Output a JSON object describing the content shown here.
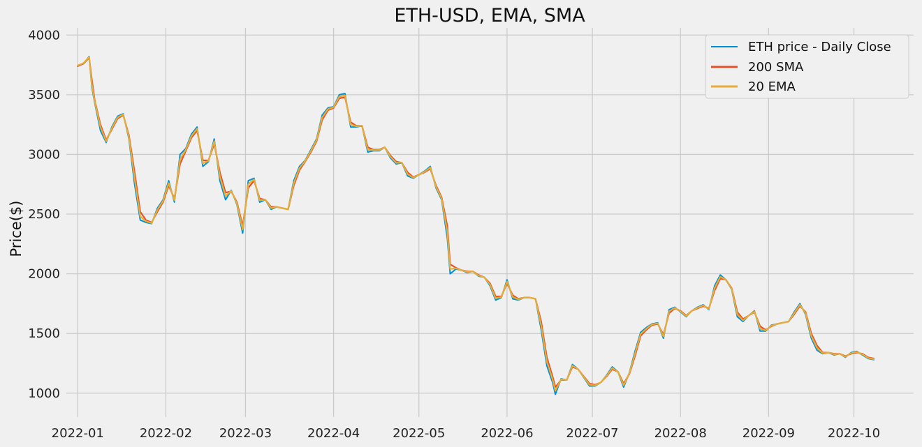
{
  "chart_data": {
    "type": "line",
    "title": "ETH-USD, EMA, SMA",
    "xlabel": "",
    "ylabel": "Price($)",
    "x_range": [
      "2021-12-28",
      "2022-10-22"
    ],
    "ylim": [
      800,
      4060
    ],
    "grid": true,
    "legend_position": "top-right",
    "x_ticks": [
      "2022-01",
      "2022-02",
      "2022-03",
      "2022-04",
      "2022-05",
      "2022-06",
      "2022-07",
      "2022-08",
      "2022-09",
      "2022-10"
    ],
    "x_tick_dates": [
      "2022-01-01",
      "2022-02-01",
      "2022-03-01",
      "2022-04-01",
      "2022-05-01",
      "2022-06-01",
      "2022-07-01",
      "2022-08-01",
      "2022-09-01",
      "2022-10-01"
    ],
    "y_ticks": [
      1000,
      1500,
      2000,
      2500,
      3000,
      3500,
      4000
    ],
    "series_dates": [
      "2022-01-01",
      "2022-01-03",
      "2022-01-05",
      "2022-01-06",
      "2022-01-07",
      "2022-01-09",
      "2022-01-11",
      "2022-01-13",
      "2022-01-15",
      "2022-01-17",
      "2022-01-19",
      "2022-01-21",
      "2022-01-23",
      "2022-01-25",
      "2022-01-27",
      "2022-01-29",
      "2022-01-31",
      "2022-02-02",
      "2022-02-04",
      "2022-02-06",
      "2022-02-08",
      "2022-02-10",
      "2022-02-12",
      "2022-02-14",
      "2022-02-16",
      "2022-02-18",
      "2022-02-20",
      "2022-02-22",
      "2022-02-24",
      "2022-02-26",
      "2022-02-28",
      "2022-03-02",
      "2022-03-04",
      "2022-03-06",
      "2022-03-08",
      "2022-03-10",
      "2022-03-12",
      "2022-03-14",
      "2022-03-16",
      "2022-03-18",
      "2022-03-20",
      "2022-03-22",
      "2022-03-24",
      "2022-03-26",
      "2022-03-28",
      "2022-03-30",
      "2022-04-01",
      "2022-04-03",
      "2022-04-05",
      "2022-04-07",
      "2022-04-09",
      "2022-04-11",
      "2022-04-13",
      "2022-04-15",
      "2022-04-17",
      "2022-04-19",
      "2022-04-21",
      "2022-04-23",
      "2022-04-25",
      "2022-04-27",
      "2022-04-29",
      "2022-05-01",
      "2022-05-03",
      "2022-05-05",
      "2022-05-07",
      "2022-05-09",
      "2022-05-11",
      "2022-05-12",
      "2022-05-14",
      "2022-05-16",
      "2022-05-18",
      "2022-05-20",
      "2022-05-22",
      "2022-05-24",
      "2022-05-26",
      "2022-05-28",
      "2022-05-30",
      "2022-06-01",
      "2022-06-03",
      "2022-06-05",
      "2022-06-07",
      "2022-06-09",
      "2022-06-11",
      "2022-06-13",
      "2022-06-15",
      "2022-06-17",
      "2022-06-18",
      "2022-06-20",
      "2022-06-22",
      "2022-06-24",
      "2022-06-26",
      "2022-06-28",
      "2022-06-30",
      "2022-07-02",
      "2022-07-04",
      "2022-07-06",
      "2022-07-08",
      "2022-07-10",
      "2022-07-12",
      "2022-07-14",
      "2022-07-16",
      "2022-07-18",
      "2022-07-20",
      "2022-07-22",
      "2022-07-24",
      "2022-07-26",
      "2022-07-28",
      "2022-07-30",
      "2022-08-01",
      "2022-08-03",
      "2022-08-05",
      "2022-08-07",
      "2022-08-09",
      "2022-08-11",
      "2022-08-13",
      "2022-08-15",
      "2022-08-17",
      "2022-08-19",
      "2022-08-21",
      "2022-08-23",
      "2022-08-25",
      "2022-08-27",
      "2022-08-29",
      "2022-08-31",
      "2022-09-02",
      "2022-09-04",
      "2022-09-06",
      "2022-09-08",
      "2022-09-10",
      "2022-09-12",
      "2022-09-14",
      "2022-09-16",
      "2022-09-18",
      "2022-09-20",
      "2022-09-22",
      "2022-09-24",
      "2022-09-26",
      "2022-09-28",
      "2022-09-30",
      "2022-10-02",
      "2022-10-04",
      "2022-10-06",
      "2022-10-08",
      "2022-10-10",
      "2022-10-11"
    ],
    "series": [
      {
        "name": "ETH price - Daily Close",
        "color": "#008fd5",
        "values": [
          3740,
          3760,
          3820,
          3560,
          3430,
          3200,
          3100,
          3230,
          3320,
          3340,
          3130,
          2750,
          2450,
          2430,
          2420,
          2550,
          2620,
          2780,
          2600,
          3000,
          3050,
          3170,
          3230,
          2900,
          2940,
          3130,
          2780,
          2620,
          2700,
          2580,
          2340,
          2780,
          2800,
          2600,
          2620,
          2540,
          2560,
          2550,
          2540,
          2780,
          2900,
          2950,
          3040,
          3130,
          3330,
          3390,
          3400,
          3500,
          3510,
          3230,
          3230,
          3240,
          3020,
          3030,
          3030,
          3060,
          2970,
          2920,
          2930,
          2820,
          2800,
          2830,
          2860,
          2900,
          2720,
          2620,
          2300,
          2000,
          2040,
          2030,
          2010,
          2020,
          1980,
          1970,
          1900,
          1780,
          1800,
          1950,
          1790,
          1780,
          1800,
          1800,
          1790,
          1530,
          1230,
          1090,
          990,
          1120,
          1110,
          1240,
          1200,
          1130,
          1060,
          1060,
          1090,
          1150,
          1220,
          1180,
          1050,
          1170,
          1350,
          1510,
          1550,
          1580,
          1590,
          1460,
          1700,
          1720,
          1680,
          1640,
          1690,
          1720,
          1740,
          1700,
          1900,
          1990,
          1950,
          1870,
          1640,
          1600,
          1650,
          1690,
          1520,
          1520,
          1570,
          1580,
          1590,
          1600,
          1680,
          1750,
          1660,
          1460,
          1360,
          1330,
          1340,
          1320,
          1330,
          1300,
          1340,
          1350,
          1320,
          1290,
          1280
        ]
      },
      {
        "name": "200 SMA",
        "color": "#e5502a",
        "values": [
          3740,
          3760,
          3810,
          3620,
          3450,
          3250,
          3120,
          3210,
          3300,
          3330,
          3160,
          2850,
          2520,
          2450,
          2430,
          2520,
          2600,
          2740,
          2630,
          2920,
          3030,
          3140,
          3200,
          2950,
          2950,
          3090,
          2850,
          2680,
          2690,
          2600,
          2400,
          2720,
          2780,
          2630,
          2620,
          2560,
          2560,
          2550,
          2540,
          2740,
          2870,
          2940,
          3020,
          3110,
          3290,
          3370,
          3390,
          3470,
          3480,
          3270,
          3240,
          3240,
          3060,
          3040,
          3040,
          3060,
          2990,
          2940,
          2930,
          2850,
          2810,
          2830,
          2850,
          2880,
          2740,
          2640,
          2400,
          2080,
          2050,
          2030,
          2020,
          2020,
          1990,
          1970,
          1920,
          1810,
          1810,
          1920,
          1820,
          1790,
          1800,
          1800,
          1790,
          1600,
          1300,
          1140,
          1050,
          1110,
          1110,
          1220,
          1200,
          1140,
          1080,
          1070,
          1090,
          1140,
          1200,
          1180,
          1080,
          1160,
          1310,
          1480,
          1530,
          1570,
          1580,
          1490,
          1670,
          1710,
          1690,
          1650,
          1690,
          1710,
          1730,
          1710,
          1860,
          1960,
          1950,
          1880,
          1680,
          1620,
          1650,
          1680,
          1560,
          1530,
          1560,
          1580,
          1590,
          1600,
          1660,
          1730,
          1680,
          1500,
          1400,
          1340,
          1340,
          1330,
          1330,
          1310,
          1330,
          1340,
          1330,
          1300,
          1290
        ]
      },
      {
        "name": "20 EMA",
        "color": "#e5ae38",
        "values": [
          3745,
          3765,
          3815,
          3580,
          3440,
          3230,
          3110,
          3220,
          3310,
          3335,
          3145,
          2800,
          2480,
          2440,
          2425,
          2535,
          2610,
          2760,
          2615,
          2960,
          3040,
          3155,
          3215,
          2925,
          2945,
          3110,
          2815,
          2650,
          2695,
          2590,
          2370,
          2750,
          2790,
          2615,
          2620,
          2550,
          2560,
          2550,
          2540,
          2760,
          2885,
          2945,
          3030,
          3120,
          3310,
          3380,
          3395,
          3485,
          3495,
          3250,
          3235,
          3240,
          3040,
          3035,
          3035,
          3060,
          2980,
          2930,
          2930,
          2835,
          2805,
          2830,
          2855,
          2890,
          2730,
          2630,
          2350,
          2040,
          2045,
          2030,
          2015,
          2020,
          1985,
          1970,
          1910,
          1795,
          1805,
          1935,
          1805,
          1785,
          1800,
          1800,
          1790,
          1565,
          1265,
          1115,
          1020,
          1115,
          1110,
          1230,
          1200,
          1135,
          1070,
          1065,
          1090,
          1145,
          1210,
          1180,
          1065,
          1165,
          1330,
          1495,
          1540,
          1575,
          1585,
          1475,
          1685,
          1715,
          1685,
          1645,
          1690,
          1715,
          1735,
          1705,
          1880,
          1975,
          1950,
          1875,
          1660,
          1610,
          1650,
          1685,
          1540,
          1525,
          1565,
          1580,
          1590,
          1600,
          1670,
          1740,
          1670,
          1480,
          1380,
          1335,
          1340,
          1325,
          1330,
          1305,
          1335,
          1345,
          1325,
          1295,
          1285
        ]
      }
    ]
  }
}
